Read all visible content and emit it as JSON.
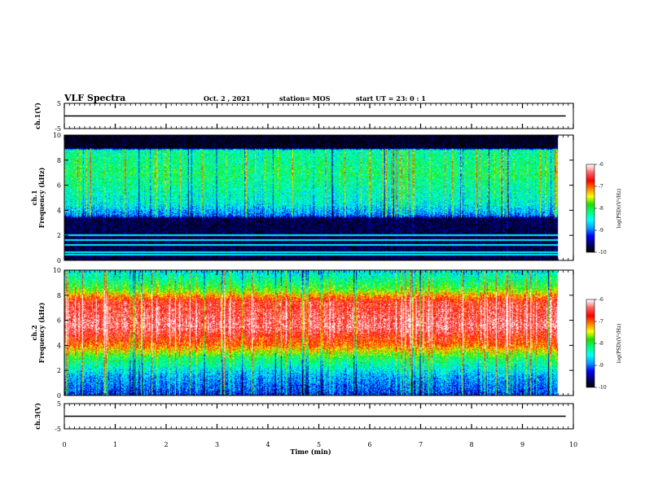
{
  "header": {
    "title": "VLF Spectra",
    "date": "Oct. 2 , 2021",
    "station": "station= MOS",
    "start_time": "start  UT =  23: 0  : 1"
  },
  "chart_data": [
    {
      "type": "line",
      "name": "ch1-voltage",
      "ylabel": "ch.1(V)",
      "ylim": [
        -5,
        5
      ],
      "yticks": [
        "5",
        "-5"
      ],
      "xlim": [
        0,
        10
      ],
      "x": [
        0,
        9.85
      ],
      "y": [
        0,
        0
      ]
    },
    {
      "type": "heatmap",
      "name": "ch1-spectrogram",
      "ylabel": "ch.1\nFrequency (kHz)",
      "ylim": [
        0,
        10
      ],
      "yticks": [
        "0",
        "2",
        "4",
        "6",
        "8",
        "10"
      ],
      "xlim": [
        0,
        10
      ],
      "data_extent_min": 9.85,
      "value_label": "log(PSD)(V²/Hz)",
      "value_range": [
        -10,
        -6
      ],
      "colorbar_ticks": [
        "-6",
        "-7",
        "-8",
        "-9",
        "-10"
      ],
      "colormap": [
        "#000000",
        "#000070",
        "#0000ff",
        "#00a0ff",
        "#00ffff",
        "#00ff80",
        "#20e000",
        "#ffff00",
        "#ff8000",
        "#ff0000",
        "#ff6060",
        "#ffffff"
      ],
      "spectral_profile_khz": [
        {
          "f": 0,
          "v": -9.8
        },
        {
          "f": 3.3,
          "v": -9.8
        },
        {
          "f": 3.6,
          "v": -9.0
        },
        {
          "f": 4.5,
          "v": -8.5
        },
        {
          "f": 7.0,
          "v": -8.1
        },
        {
          "f": 8.8,
          "v": -8.3
        },
        {
          "f": 9.0,
          "v": -10.0
        },
        {
          "f": 10,
          "v": -10.0
        }
      ],
      "narrowband_lines_khz": [
        0.4,
        0.6,
        1.2,
        1.6,
        2.0
      ]
    },
    {
      "type": "heatmap",
      "name": "ch2-spectrogram",
      "ylabel": "ch.2\nFrequency (kHz)",
      "ylim": [
        0,
        10
      ],
      "yticks": [
        "0",
        "2",
        "4",
        "6",
        "8",
        "10"
      ],
      "xlim": [
        0,
        10
      ],
      "data_extent_min": 9.85,
      "value_label": "log(PSD)(V²/Hz)",
      "value_range": [
        -10,
        -6
      ],
      "colorbar_ticks": [
        "-6",
        "-7",
        "-8",
        "-9",
        "-10"
      ],
      "colormap": [
        "#000000",
        "#000070",
        "#0000ff",
        "#00a0ff",
        "#00ffff",
        "#00ff80",
        "#20e000",
        "#ffff00",
        "#ff8000",
        "#ff0000",
        "#ff6060",
        "#ffffff"
      ],
      "spectral_profile_khz": [
        {
          "f": 0,
          "v": -9.2
        },
        {
          "f": 1.5,
          "v": -8.8
        },
        {
          "f": 3.0,
          "v": -8.0
        },
        {
          "f": 4.0,
          "v": -7.0
        },
        {
          "f": 5.5,
          "v": -6.3
        },
        {
          "f": 7.5,
          "v": -6.6
        },
        {
          "f": 8.5,
          "v": -7.8
        },
        {
          "f": 10,
          "v": -8.6
        }
      ]
    },
    {
      "type": "line",
      "name": "ch3-voltage",
      "ylabel": "ch.3(V)",
      "ylim": [
        -5,
        5
      ],
      "yticks": [
        "5",
        "-5"
      ],
      "xlim": [
        0,
        10
      ],
      "x": [
        0,
        9.85
      ],
      "y": [
        0,
        0
      ]
    }
  ],
  "x_axis": {
    "label": "Time  (min)",
    "ticks": [
      "0",
      "1",
      "2",
      "3",
      "4",
      "5",
      "6",
      "7",
      "8",
      "9",
      "10"
    ]
  }
}
